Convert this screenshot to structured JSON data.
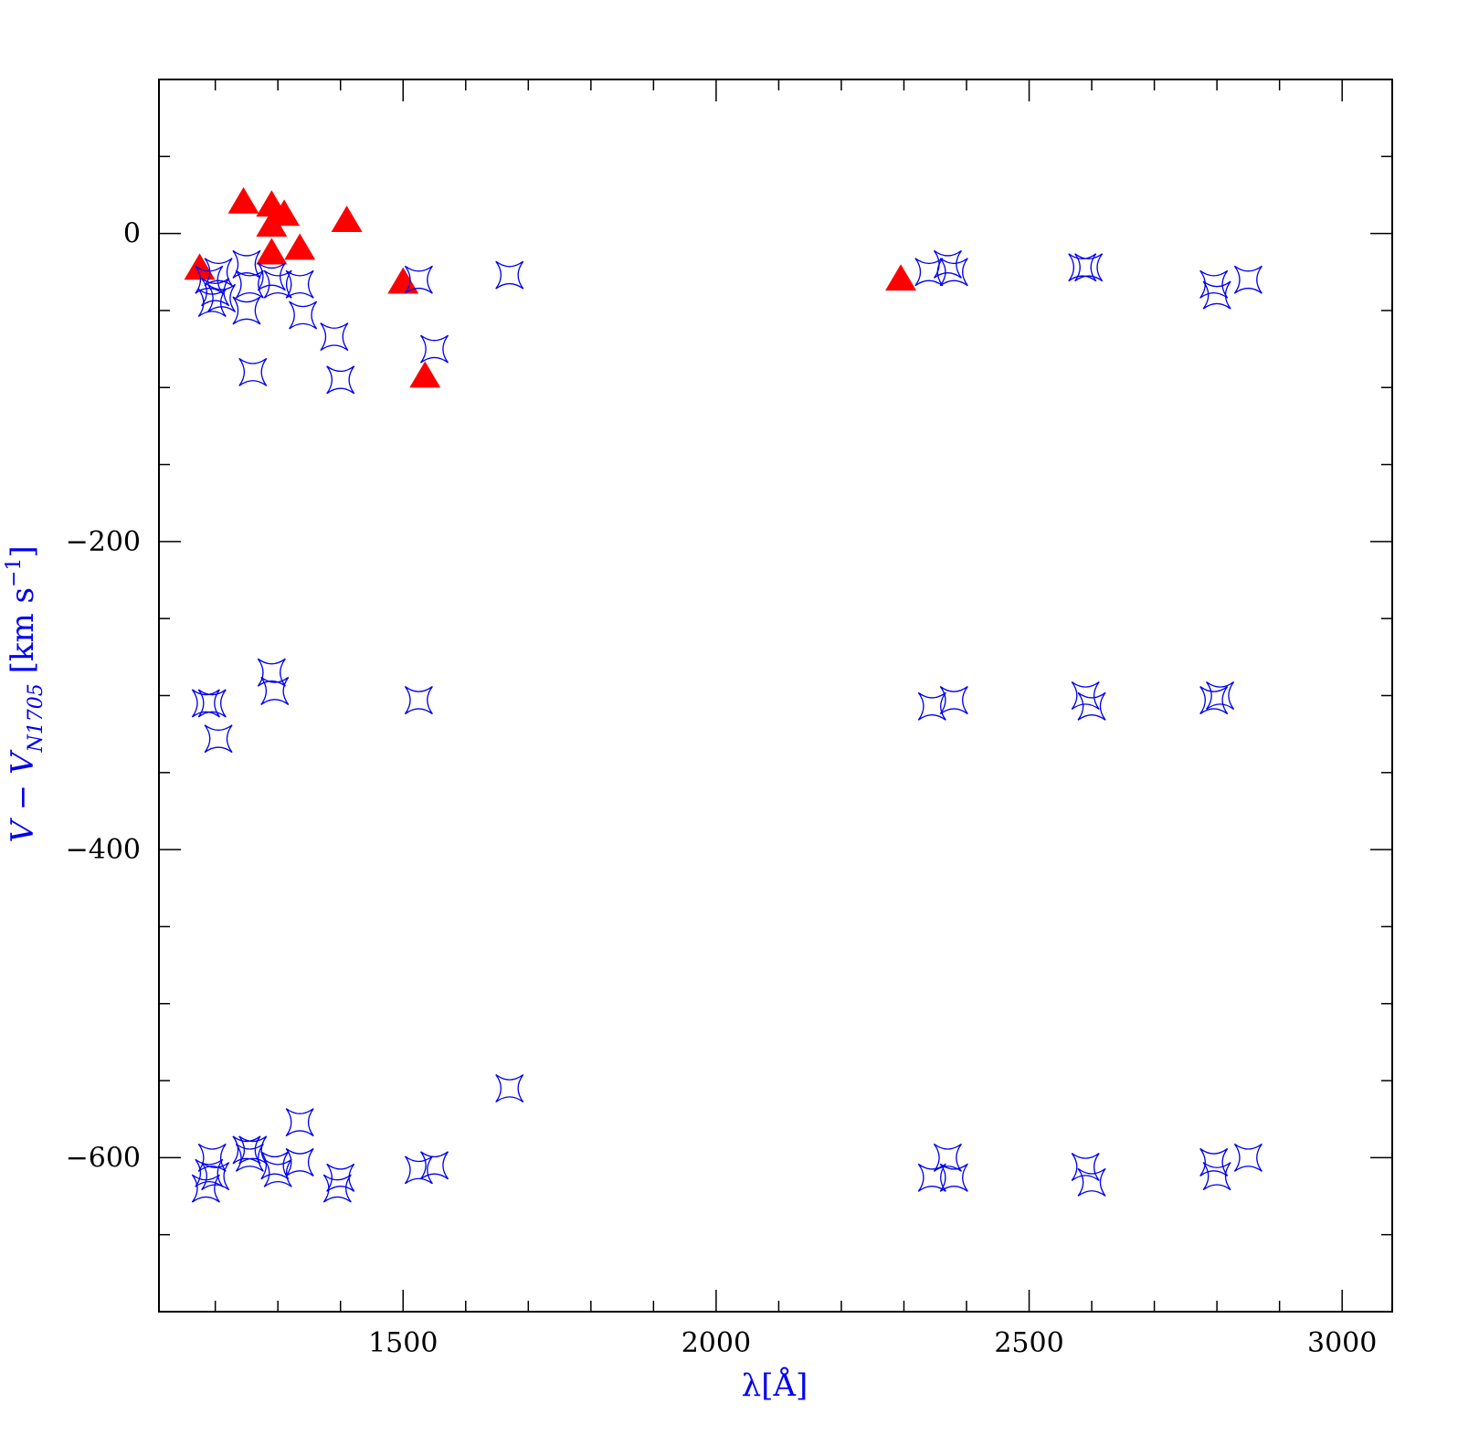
{
  "chart_data": {
    "type": "scatter",
    "title": "",
    "xlabel": "λ[Å]",
    "ylabel": {
      "main": "V − V",
      "subscript": "N1705",
      "units": " [km s",
      "sup": "−1",
      "close": "]"
    },
    "xlim": [
      1110,
      3080
    ],
    "ylim": [
      -700,
      100
    ],
    "xticks_major": [
      1500,
      2000,
      2500,
      3000
    ],
    "xticks_minor_step": 100,
    "yticks_major": [
      0,
      -200,
      -400,
      -600
    ],
    "yticks_minor_step": 50,
    "yticks_major_labels": [
      "0",
      "−200",
      "−400",
      "−600"
    ],
    "xticks_major_labels": [
      "1500",
      "2000",
      "2500",
      "3000"
    ],
    "grid": false,
    "series": [
      {
        "marker": "filled-triangle",
        "color": "#ff0000",
        "points": [
          [
            1175,
            -23
          ],
          [
            1245,
            20
          ],
          [
            1290,
            18
          ],
          [
            1290,
            5
          ],
          [
            1310,
            12
          ],
          [
            1290,
            -13
          ],
          [
            1335,
            -10
          ],
          [
            1410,
            8
          ],
          [
            1500,
            -32
          ],
          [
            1535,
            -93
          ],
          [
            2295,
            -30
          ]
        ]
      },
      {
        "marker": "open-star",
        "color": "#0000ee",
        "points": [
          [
            1190,
            -30
          ],
          [
            1195,
            -45
          ],
          [
            1200,
            -38
          ],
          [
            1205,
            -25
          ],
          [
            1210,
            -42
          ],
          [
            1250,
            -20
          ],
          [
            1250,
            -50
          ],
          [
            1255,
            -33
          ],
          [
            1260,
            -90
          ],
          [
            1290,
            -28
          ],
          [
            1300,
            -33
          ],
          [
            1335,
            -33
          ],
          [
            1340,
            -53
          ],
          [
            1390,
            -67
          ],
          [
            1400,
            -95
          ],
          [
            1525,
            -30
          ],
          [
            1550,
            -75
          ],
          [
            1670,
            -27
          ],
          [
            2340,
            -25
          ],
          [
            2370,
            -20
          ],
          [
            2380,
            -25
          ],
          [
            2585,
            -22
          ],
          [
            2595,
            -22
          ],
          [
            2795,
            -33
          ],
          [
            2800,
            -40
          ],
          [
            2850,
            -30
          ],
          [
            1185,
            -305
          ],
          [
            1195,
            -305
          ],
          [
            1205,
            -328
          ],
          [
            1290,
            -285
          ],
          [
            1295,
            -297
          ],
          [
            1525,
            -303
          ],
          [
            2345,
            -307
          ],
          [
            2380,
            -303
          ],
          [
            2590,
            -300
          ],
          [
            2600,
            -307
          ],
          [
            2795,
            -303
          ],
          [
            2805,
            -300
          ],
          [
            1185,
            -620
          ],
          [
            1190,
            -610
          ],
          [
            1195,
            -600
          ],
          [
            1200,
            -612
          ],
          [
            1250,
            -595
          ],
          [
            1255,
            -600
          ],
          [
            1260,
            -595
          ],
          [
            1295,
            -605
          ],
          [
            1300,
            -610
          ],
          [
            1335,
            -603
          ],
          [
            1335,
            -577
          ],
          [
            1395,
            -620
          ],
          [
            1400,
            -613
          ],
          [
            1525,
            -608
          ],
          [
            1550,
            -605
          ],
          [
            1670,
            -555
          ],
          [
            2345,
            -613
          ],
          [
            2370,
            -600
          ],
          [
            2380,
            -613
          ],
          [
            2590,
            -606
          ],
          [
            2600,
            -616
          ],
          [
            2795,
            -603
          ],
          [
            2800,
            -612
          ],
          [
            2850,
            -600
          ]
        ]
      }
    ]
  }
}
